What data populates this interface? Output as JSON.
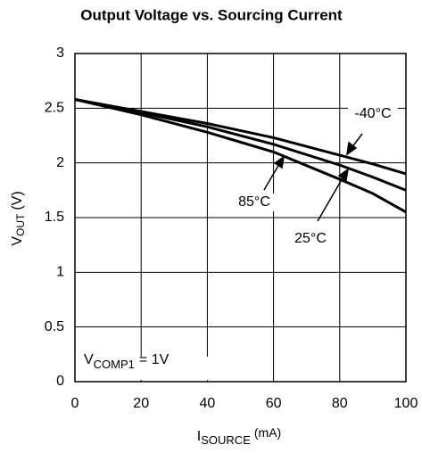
{
  "chart_data": {
    "type": "line",
    "title": "Output Voltage vs. Sourcing Current",
    "xlabel": {
      "symbol": "I",
      "subscript": "SOURCE",
      "unit": "(mA)"
    },
    "ylabel": {
      "symbol": "V",
      "subscript": "OUT",
      "unit": "(V)"
    },
    "annotation": {
      "symbol": "V",
      "subscript": "COMP1",
      "text": "= 1V"
    },
    "x": [
      0,
      20,
      40,
      60,
      80,
      90,
      100
    ],
    "series": [
      {
        "name": "-40°C",
        "color": "#000000",
        "values": [
          2.58,
          2.47,
          2.36,
          2.23,
          2.07,
          1.99,
          1.9
        ]
      },
      {
        "name": "25°C",
        "color": "#000000",
        "values": [
          2.58,
          2.46,
          2.33,
          2.17,
          1.98,
          1.87,
          1.75
        ]
      },
      {
        "name": "85°C",
        "color": "#000000",
        "values": [
          2.58,
          2.44,
          2.28,
          2.1,
          1.85,
          1.72,
          1.55
        ]
      }
    ],
    "xlim": [
      0,
      100
    ],
    "xticks": [
      0,
      20,
      40,
      60,
      80,
      100
    ],
    "ylim": [
      0,
      3
    ],
    "yticks": [
      0,
      0.5,
      1,
      1.5,
      2,
      2.5,
      3
    ],
    "grid": true
  }
}
